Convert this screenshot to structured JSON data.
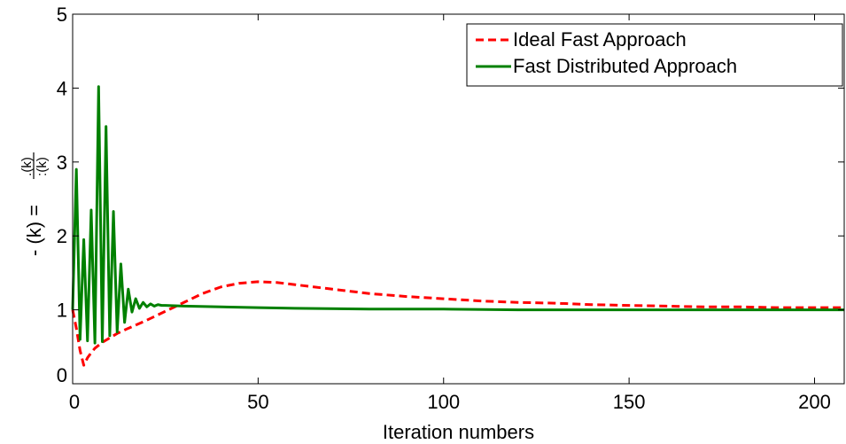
{
  "chart_data": {
    "type": "line",
    "xlabel": "Iteration numbers",
    "ylabel": "- (k) = ",
    "ylabel_fraction": {
      "numerator": ".(k)",
      "denominator": ":(k)"
    },
    "xlim": [
      0,
      208
    ],
    "ylim": [
      0,
      5
    ],
    "x_ticks": [
      0,
      50,
      100,
      150,
      200
    ],
    "y_ticks": [
      0,
      1,
      2,
      3,
      4,
      5
    ],
    "grid": false,
    "legend_position": "top-right",
    "series": [
      {
        "name": "Ideal Fast Approach",
        "color": "#ff0000",
        "line_style": "dashed",
        "x": [
          0,
          1,
          2,
          3,
          4,
          5,
          6,
          8,
          10,
          12,
          15,
          20,
          25,
          30,
          35,
          40,
          45,
          50,
          55,
          60,
          70,
          80,
          90,
          100,
          110,
          120,
          130,
          140,
          150,
          160,
          170,
          180,
          190,
          200,
          208
        ],
        "y": [
          1.0,
          0.75,
          0.45,
          0.25,
          0.35,
          0.42,
          0.48,
          0.56,
          0.62,
          0.68,
          0.75,
          0.86,
          0.98,
          1.1,
          1.22,
          1.31,
          1.36,
          1.38,
          1.37,
          1.34,
          1.28,
          1.22,
          1.18,
          1.15,
          1.12,
          1.1,
          1.09,
          1.07,
          1.06,
          1.05,
          1.04,
          1.04,
          1.03,
          1.03,
          1.03
        ]
      },
      {
        "name": "Fast Distributed Approach",
        "color": "#008000",
        "line_style": "solid",
        "x": [
          0,
          1,
          2,
          3,
          4,
          5,
          6,
          7,
          8,
          9,
          10,
          11,
          12,
          13,
          14,
          15,
          16,
          17,
          18,
          19,
          20,
          21,
          22,
          23,
          24,
          25,
          30,
          40,
          50,
          60,
          80,
          100,
          120,
          140,
          160,
          180,
          200,
          208
        ],
        "y": [
          1.0,
          2.9,
          0.6,
          1.95,
          0.58,
          2.35,
          0.55,
          4.02,
          0.57,
          3.48,
          0.65,
          2.33,
          0.7,
          1.62,
          0.83,
          1.28,
          0.97,
          1.15,
          1.02,
          1.1,
          1.04,
          1.08,
          1.05,
          1.07,
          1.06,
          1.06,
          1.05,
          1.04,
          1.03,
          1.02,
          1.01,
          1.01,
          1.0,
          1.0,
          1.0,
          1.0,
          1.0,
          1.0
        ]
      }
    ]
  }
}
